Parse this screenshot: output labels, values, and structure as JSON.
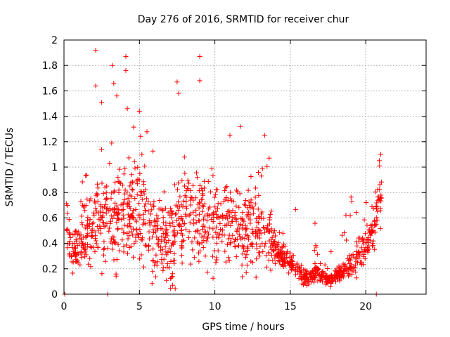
{
  "chart_data": {
    "type": "scatter",
    "title": "Day 276 of 2016, SRMTID for receiver chur",
    "xlabel": "GPS time / hours",
    "ylabel": "SRMTID / TECUs",
    "xlim": [
      0,
      24
    ],
    "ylim": [
      0,
      2
    ],
    "xticks": [
      "0",
      "5",
      "10",
      "15",
      "20"
    ],
    "yticks": [
      "0",
      "0.2",
      "0.4",
      "0.6",
      "0.8",
      "1",
      "1.2",
      "1.4",
      "1.6",
      "1.8",
      "2"
    ],
    "grid": true,
    "marker": "+",
    "color": "#ff0000",
    "notable_points": [
      {
        "x": 2.1,
        "y": 1.92
      },
      {
        "x": 4.1,
        "y": 1.87
      },
      {
        "x": 9.0,
        "y": 1.87
      },
      {
        "x": 3.2,
        "y": 1.8
      },
      {
        "x": 4.1,
        "y": 1.76
      },
      {
        "x": 9.0,
        "y": 1.68
      },
      {
        "x": 7.5,
        "y": 1.67
      },
      {
        "x": 3.3,
        "y": 1.66
      },
      {
        "x": 2.1,
        "y": 1.64
      },
      {
        "x": 2.5,
        "y": 1.51
      },
      {
        "x": 5.0,
        "y": 1.44
      },
      {
        "x": 4.2,
        "y": 1.46
      },
      {
        "x": 3.5,
        "y": 1.56
      },
      {
        "x": 7.6,
        "y": 1.58
      },
      {
        "x": 13.3,
        "y": 1.25
      },
      {
        "x": 11.0,
        "y": 1.25
      },
      {
        "x": 13.6,
        "y": 1.07
      },
      {
        "x": 21.0,
        "y": 1.1
      },
      {
        "x": 20.9,
        "y": 1.05
      },
      {
        "x": 0.05,
        "y": 0.0
      },
      {
        "x": 2.9,
        "y": 0.0
      },
      {
        "x": 20.7,
        "y": 0.0
      }
    ],
    "envelope": [
      {
        "x": 0.2,
        "center": 0.55,
        "spread": 0.3
      },
      {
        "x": 0.5,
        "center": 0.3,
        "spread": 0.12
      },
      {
        "x": 1.0,
        "center": 0.4,
        "spread": 0.25
      },
      {
        "x": 2.0,
        "center": 0.55,
        "spread": 0.4
      },
      {
        "x": 3.0,
        "center": 0.55,
        "spread": 0.45
      },
      {
        "x": 4.0,
        "center": 0.65,
        "spread": 0.45
      },
      {
        "x": 5.0,
        "center": 0.7,
        "spread": 0.45
      },
      {
        "x": 6.0,
        "center": 0.5,
        "spread": 0.4
      },
      {
        "x": 7.0,
        "center": 0.4,
        "spread": 0.35
      },
      {
        "x": 8.0,
        "center": 0.65,
        "spread": 0.45
      },
      {
        "x": 9.0,
        "center": 0.65,
        "spread": 0.45
      },
      {
        "x": 10.0,
        "center": 0.55,
        "spread": 0.4
      },
      {
        "x": 11.0,
        "center": 0.6,
        "spread": 0.35
      },
      {
        "x": 12.0,
        "center": 0.5,
        "spread": 0.35
      },
      {
        "x": 13.0,
        "center": 0.55,
        "spread": 0.4
      },
      {
        "x": 14.0,
        "center": 0.35,
        "spread": 0.15
      },
      {
        "x": 15.0,
        "center": 0.25,
        "spread": 0.1
      },
      {
        "x": 16.0,
        "center": 0.12,
        "spread": 0.07
      },
      {
        "x": 16.8,
        "center": 0.17,
        "spread": 0.08
      },
      {
        "x": 17.5,
        "center": 0.1,
        "spread": 0.05
      },
      {
        "x": 18.5,
        "center": 0.18,
        "spread": 0.08
      },
      {
        "x": 19.5,
        "center": 0.3,
        "spread": 0.15
      },
      {
        "x": 20.5,
        "center": 0.45,
        "spread": 0.2
      },
      {
        "x": 21.0,
        "center": 0.8,
        "spread": 0.25
      }
    ],
    "point_count": 1400
  }
}
